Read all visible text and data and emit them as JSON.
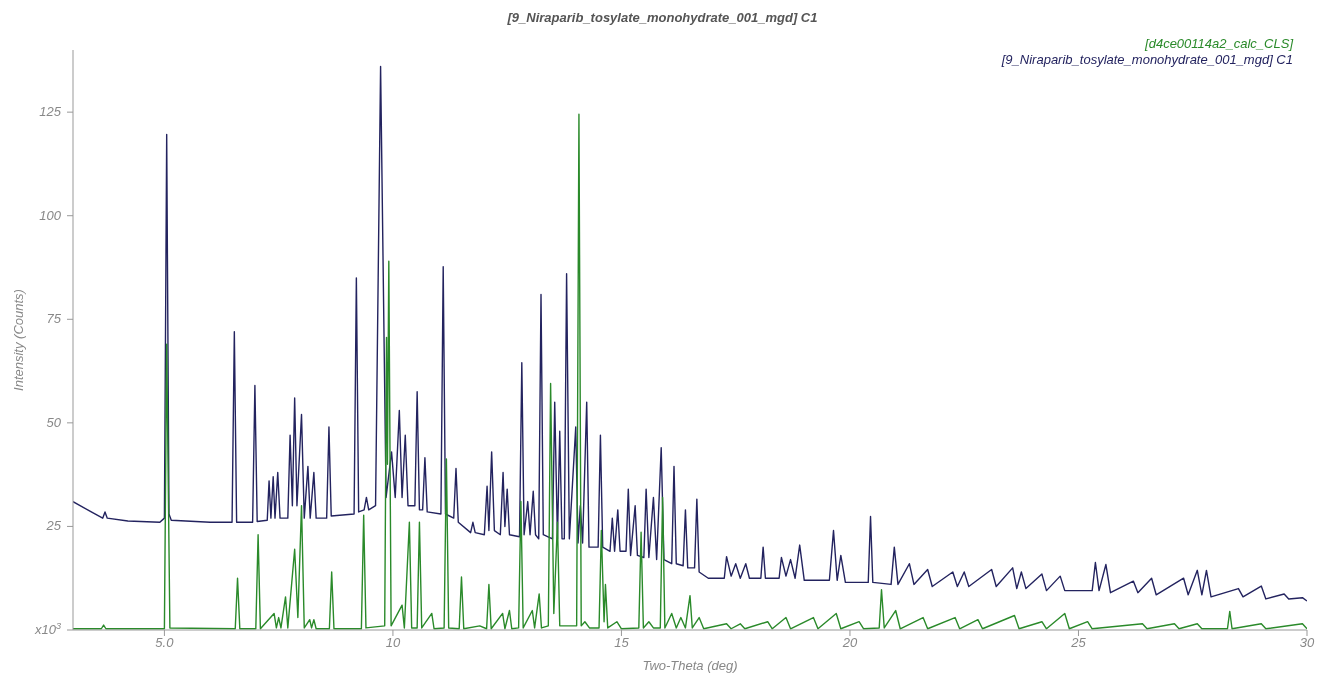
{
  "chart_data": {
    "type": "line",
    "title": "[9_Niraparib_tosylate_monohydrate_001_mgd] C1",
    "xlabel": "Two-Theta (deg)",
    "ylabel": "Intensity (Counts)",
    "xlim": [
      3,
      30
    ],
    "xticks": [
      {
        "value": 5,
        "label": "5.0"
      },
      10,
      15,
      20,
      25,
      30
    ],
    "ylim": [
      0,
      140
    ],
    "yticks": [
      {
        "value": 0,
        "label": "x10$^{3}$"
      },
      25,
      50,
      75,
      100,
      125
    ],
    "legend": "top right",
    "marker": "none",
    "line_style": "solid",
    "series": [
      {
        "name": "[d4ce00114a2_calc_CLS]",
        "color": "#2a8a2a",
        "x": [
          3.0,
          3.62,
          3.67,
          3.72,
          5.0,
          5.05,
          5.12,
          6.55,
          6.6,
          6.65,
          7.0,
          7.05,
          7.1,
          7.4,
          7.45,
          7.5,
          7.55,
          7.65,
          7.7,
          7.85,
          7.92,
          8.0,
          8.06,
          8.18,
          8.22,
          8.27,
          8.32,
          8.61,
          8.66,
          8.71,
          9.31,
          9.36,
          9.41,
          9.82,
          9.86,
          9.88,
          9.91,
          9.96,
          10.2,
          10.25,
          10.36,
          10.41,
          10.53,
          10.58,
          10.63,
          10.85,
          10.9,
          11.12,
          11.17,
          11.22,
          11.45,
          11.5,
          11.55,
          11.9,
          12.05,
          12.1,
          12.15,
          12.4,
          12.45,
          12.55,
          12.6,
          12.75,
          12.8,
          12.85,
          13.05,
          13.1,
          13.2,
          13.25,
          13.4,
          13.45,
          13.52,
          13.6,
          13.65,
          14.02,
          14.07,
          14.12,
          14.2,
          14.3,
          14.51,
          14.56,
          14.62,
          14.65,
          14.7,
          14.9,
          15.0,
          15.38,
          15.43,
          15.48,
          15.6,
          15.7,
          15.85,
          15.9,
          15.95,
          16.1,
          16.2,
          16.3,
          16.4,
          16.5,
          16.55,
          16.7,
          16.8,
          17.3,
          17.4,
          17.6,
          17.7,
          18.2,
          18.3,
          18.6,
          18.7,
          19.2,
          19.3,
          19.7,
          19.8,
          20.2,
          20.3,
          20.64,
          20.69,
          20.75,
          21.0,
          21.1,
          21.6,
          21.7,
          22.3,
          22.4,
          22.8,
          22.9,
          23.6,
          23.7,
          24.2,
          24.3,
          24.7,
          24.8,
          25.2,
          25.3,
          26.4,
          26.5,
          27.1,
          27.2,
          27.6,
          27.7,
          28.26,
          28.31,
          28.36,
          29.0,
          29.1,
          29.9,
          30.0
        ],
        "values": [
          0.3,
          0.3,
          1.2,
          0.3,
          0.3,
          69,
          0.5,
          0.3,
          12.5,
          0.3,
          0.3,
          23,
          0.3,
          4,
          0.5,
          3,
          0.5,
          8,
          0.5,
          19.5,
          3,
          30,
          0.5,
          2.5,
          0.5,
          2.5,
          0.3,
          0.3,
          14,
          0.3,
          0.3,
          27.7,
          0.5,
          1,
          70.6,
          40,
          89,
          1,
          6,
          0.5,
          26,
          0.5,
          0.5,
          26,
          0.5,
          4,
          0.3,
          0.5,
          41.3,
          0.5,
          0.3,
          12.8,
          0.3,
          1,
          0.3,
          11,
          0.3,
          4,
          0.3,
          4.7,
          0.3,
          0.5,
          31,
          0.5,
          4.7,
          0.5,
          8.7,
          0.5,
          1,
          59.5,
          4,
          26,
          1,
          1,
          124.5,
          1,
          2,
          0.5,
          0.5,
          24,
          2,
          11,
          0.5,
          2,
          0.3,
          0.5,
          23.6,
          0.5,
          2,
          0.5,
          0.5,
          32,
          0.5,
          4,
          0.5,
          3,
          0.5,
          8.3,
          0.5,
          3,
          0.3,
          1.5,
          0.3,
          1.5,
          0.3,
          2,
          0.3,
          3,
          0.3,
          3,
          0.3,
          4,
          0.3,
          2,
          0.3,
          0.5,
          9.7,
          0.5,
          4.7,
          0.3,
          3,
          0.3,
          3,
          0.3,
          2.5,
          0.3,
          3.5,
          0.3,
          2,
          0.3,
          4,
          0.3,
          2,
          0.3,
          1.5,
          0.3,
          1.5,
          0.3,
          1.5,
          0.3,
          0.3,
          4.5,
          0.3,
          1.5,
          0.3,
          1.5,
          0.3
        ]
      },
      {
        "name": "[9_Niraparib_tosylate_monohydrate_001_mgd] C1",
        "color": "#23235f",
        "x": [
          3.0,
          3.4,
          3.65,
          3.7,
          3.75,
          4.2,
          4.9,
          5.0,
          5.05,
          5.1,
          5.15,
          6.0,
          6.48,
          6.53,
          6.58,
          6.93,
          6.98,
          7.03,
          7.25,
          7.29,
          7.33,
          7.38,
          7.42,
          7.48,
          7.53,
          7.7,
          7.75,
          7.8,
          7.85,
          7.9,
          8.0,
          8.06,
          8.14,
          8.19,
          8.27,
          8.32,
          8.55,
          8.6,
          8.65,
          9.15,
          9.2,
          9.25,
          9.37,
          9.42,
          9.47,
          9.62,
          9.73,
          9.85,
          9.97,
          10.05,
          10.14,
          10.2,
          10.27,
          10.33,
          10.48,
          10.53,
          10.58,
          10.65,
          10.7,
          10.75,
          11.05,
          11.1,
          11.15,
          11.33,
          11.38,
          11.43,
          11.7,
          11.75,
          11.8,
          12.0,
          12.06,
          12.1,
          12.16,
          12.22,
          12.35,
          12.41,
          12.45,
          12.5,
          12.55,
          12.77,
          12.82,
          12.87,
          12.95,
          13.0,
          13.07,
          13.12,
          13.19,
          13.24,
          13.29,
          13.49,
          13.54,
          13.6,
          13.65,
          13.7,
          13.75,
          13.8,
          13.86,
          14.0,
          14.05,
          14.1,
          14.15,
          14.24,
          14.29,
          14.49,
          14.54,
          14.59,
          14.75,
          14.8,
          14.85,
          14.92,
          14.97,
          15.1,
          15.15,
          15.2,
          15.3,
          15.35,
          15.49,
          15.54,
          15.6,
          15.7,
          15.77,
          15.87,
          15.93,
          16.1,
          16.15,
          16.2,
          16.35,
          16.4,
          16.45,
          16.6,
          16.65,
          16.7,
          16.9,
          17.25,
          17.3,
          17.4,
          17.5,
          17.6,
          17.72,
          17.8,
          18.05,
          18.1,
          18.15,
          18.45,
          18.5,
          18.6,
          18.7,
          18.8,
          18.9,
          19.0,
          19.55,
          19.64,
          19.72,
          19.8,
          19.9,
          20.4,
          20.45,
          20.5,
          20.9,
          20.97,
          21.05,
          21.3,
          21.4,
          21.7,
          21.8,
          22.25,
          22.35,
          22.5,
          22.6,
          23.1,
          23.2,
          23.56,
          23.65,
          23.75,
          23.85,
          24.2,
          24.3,
          24.6,
          24.7,
          25.3,
          25.37,
          25.45,
          25.6,
          25.7,
          26.2,
          26.3,
          26.6,
          26.7,
          27.3,
          27.4,
          27.6,
          27.7,
          27.8,
          27.9,
          28.5,
          28.6,
          29.0,
          29.1,
          29.5,
          29.6,
          29.9,
          30.0
        ],
        "values": [
          31,
          28.5,
          27,
          28.5,
          27,
          26.3,
          26,
          27,
          119.6,
          28,
          26.5,
          26,
          26,
          72,
          26,
          26,
          59,
          26.2,
          26.5,
          36,
          27,
          37,
          27,
          38,
          27,
          27,
          47,
          30,
          56,
          30,
          52,
          27,
          39.5,
          27,
          38,
          27,
          27,
          49,
          27.5,
          28,
          85,
          28.5,
          29,
          32,
          29,
          30,
          136,
          32,
          43,
          32,
          53,
          32,
          47,
          30,
          30,
          57.5,
          29,
          29,
          41.6,
          28.5,
          28,
          87.7,
          28,
          27,
          39,
          26,
          23.5,
          26,
          23.5,
          23,
          34.7,
          24,
          43,
          24,
          23,
          38,
          25,
          34,
          23,
          22.5,
          64.5,
          23,
          31,
          23,
          33.5,
          23,
          22,
          81,
          23,
          22,
          55,
          22,
          48,
          22,
          22,
          86,
          22,
          49,
          21,
          30,
          21,
          55,
          20,
          20,
          47,
          20,
          19,
          27,
          19,
          29,
          19,
          19,
          34,
          18,
          30,
          18,
          17.5,
          34,
          17.5,
          32,
          17,
          44,
          17,
          16,
          39.5,
          16,
          15.5,
          29,
          15,
          15,
          31.6,
          14,
          12.5,
          12.5,
          17.7,
          13,
          16,
          12.5,
          16,
          12.5,
          12.5,
          20,
          12.5,
          12.5,
          17.5,
          13,
          17,
          12.5,
          20.5,
          12,
          12,
          24,
          12,
          18,
          11.5,
          11.5,
          27.4,
          11.5,
          11,
          20,
          11,
          16,
          11,
          14.6,
          10.5,
          14,
          10.5,
          14,
          10.5,
          14.6,
          10.5,
          15,
          10,
          14,
          10,
          13.5,
          9.5,
          13,
          9.5,
          9.5,
          16.3,
          9.5,
          15.8,
          9,
          11.8,
          9,
          12.5,
          8.5,
          12.5,
          8.5,
          14.4,
          8.5,
          14.4,
          8,
          10,
          8,
          10.6,
          7.5,
          8.7,
          7.5,
          7.8,
          7
        ]
      }
    ]
  }
}
